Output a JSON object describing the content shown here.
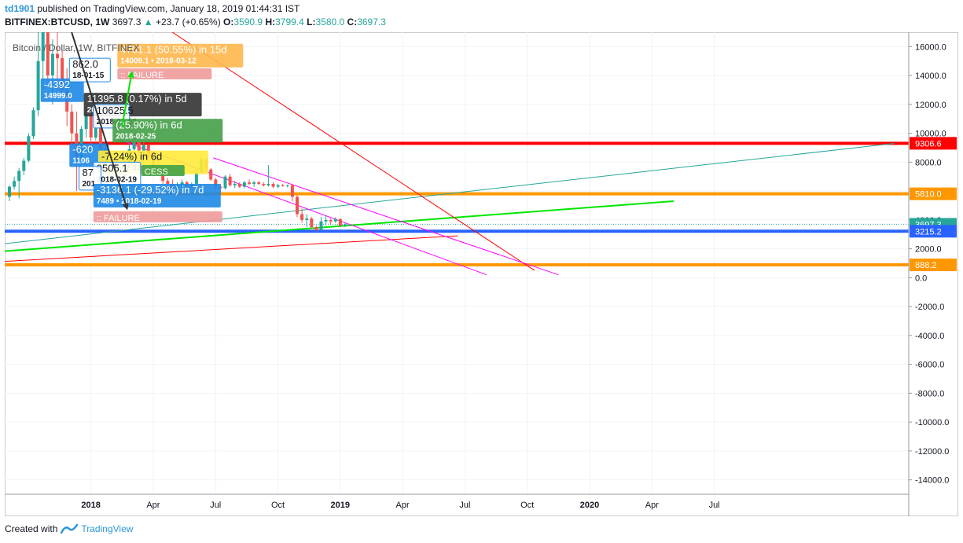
{
  "header": {
    "user": "td1901",
    "published": "published on TradingView.com, January 18, 2019 01:44:31 IST",
    "symbol": "BITFINEX:BTCUSD, 1W",
    "last": "3697.3",
    "change": "+23.7 (+0.65%)",
    "o_label": "O:",
    "o_value": "3590.9",
    "h_label": "H:",
    "h_value": "3799.4",
    "l_label": "L:",
    "l_value": "3580.0",
    "c_label": "C:",
    "c_value": "3697.3"
  },
  "chart_legend": "Bitcoin / Dollar, 1W, BITFINEX",
  "footer": {
    "created_with": "Created with",
    "brand": "TradingView"
  },
  "colors": {
    "up": "#26a69a",
    "down": "#ef5350",
    "red_line": "#ff0000",
    "orange_line": "#ff9800",
    "blue_line": "#2962ff",
    "green_line": "#00e600",
    "magenta_line": "#ff00ff",
    "teal_line": "#26a69a"
  },
  "chart_data": {
    "type": "candlestick",
    "x_axis_labels": [
      "2018",
      "Apr",
      "Jul",
      "Oct",
      "2019",
      "Apr",
      "Jul",
      "Oct",
      "2020",
      "Apr",
      "Jul"
    ],
    "y_ticks": [
      16000,
      14000,
      12000,
      10000,
      8000,
      6000,
      4000,
      2000,
      0,
      -2000,
      -4000,
      -6000,
      -8000,
      -10000,
      -12000,
      -14000
    ],
    "y_tick_labels": [
      "16000.0",
      "14000.0",
      "12000.0",
      "10000.0",
      "8000.0",
      "6000.0",
      "4000.0",
      "2000.0",
      "0.0",
      "-2000.0",
      "-4000.0",
      "-6000.0",
      "-8000.0",
      "-10000.0",
      "-12000.0",
      "-14000.0"
    ],
    "ylim": [
      -15000,
      17000
    ],
    "price_labels": [
      {
        "value": 9306.6,
        "text": "9306.6",
        "color": "#ff0000"
      },
      {
        "value": 5810.0,
        "text": "5810.0",
        "color": "#ff9800"
      },
      {
        "value": 3697.3,
        "text": "3697.3",
        "color": "#26a69a"
      },
      {
        "value": 3215.2,
        "text": "3215.2",
        "color": "#2962ff"
      },
      {
        "value": 888.2,
        "text": "888.2",
        "color": "#ff9800"
      }
    ],
    "horizontal_levels": [
      {
        "value": 9306.6,
        "color": "#ff0000"
      },
      {
        "value": 5810.0,
        "color": "#ff9800"
      },
      {
        "value": 3215.2,
        "color": "#2962ff"
      },
      {
        "value": 888.2,
        "color": "#ff9800"
      }
    ],
    "last_price": 3697.3,
    "candles": [
      {
        "o": 5600,
        "h": 6400,
        "l": 5300,
        "c": 6300
      },
      {
        "o": 6300,
        "h": 7000,
        "l": 6100,
        "c": 6700
      },
      {
        "o": 6700,
        "h": 7600,
        "l": 5500,
        "c": 7400
      },
      {
        "o": 7400,
        "h": 8300,
        "l": 7100,
        "c": 8100
      },
      {
        "o": 8100,
        "h": 10000,
        "l": 8000,
        "c": 9800
      },
      {
        "o": 9800,
        "h": 11800,
        "l": 9600,
        "c": 11600
      },
      {
        "o": 11600,
        "h": 17500,
        "l": 11200,
        "c": 15000
      },
      {
        "o": 15000,
        "h": 19800,
        "l": 13000,
        "c": 18000
      },
      {
        "o": 18000,
        "h": 19000,
        "l": 13500,
        "c": 14000
      },
      {
        "o": 14000,
        "h": 16500,
        "l": 12000,
        "c": 15500
      },
      {
        "o": 15500,
        "h": 17100,
        "l": 13000,
        "c": 15200
      },
      {
        "o": 15200,
        "h": 15800,
        "l": 12500,
        "c": 13000
      },
      {
        "o": 13000,
        "h": 14500,
        "l": 10500,
        "c": 11500
      },
      {
        "o": 11500,
        "h": 12000,
        "l": 9000,
        "c": 10000
      },
      {
        "o": 10000,
        "h": 11500,
        "l": 6000,
        "c": 8300
      },
      {
        "o": 8300,
        "h": 10500,
        "l": 8000,
        "c": 10300
      },
      {
        "o": 10300,
        "h": 11600,
        "l": 9700,
        "c": 11300
      },
      {
        "o": 11300,
        "h": 11800,
        "l": 9200,
        "c": 9700
      },
      {
        "o": 9700,
        "h": 11200,
        "l": 9500,
        "c": 10800
      },
      {
        "o": 10800,
        "h": 11000,
        "l": 8500,
        "c": 8900
      },
      {
        "o": 8900,
        "h": 9300,
        "l": 7800,
        "c": 8200
      },
      {
        "o": 8200,
        "h": 8500,
        "l": 6800,
        "c": 7000
      },
      {
        "o": 7000,
        "h": 8100,
        "l": 6500,
        "c": 6900
      },
      {
        "o": 6900,
        "h": 7500,
        "l": 6600,
        "c": 7000
      },
      {
        "o": 7000,
        "h": 8300,
        "l": 6800,
        "c": 8000
      },
      {
        "o": 8000,
        "h": 9300,
        "l": 7900,
        "c": 8900
      },
      {
        "o": 8900,
        "h": 9700,
        "l": 8800,
        "c": 9400
      },
      {
        "o": 9400,
        "h": 9800,
        "l": 8500,
        "c": 8800
      },
      {
        "o": 8800,
        "h": 9400,
        "l": 8300,
        "c": 9200
      },
      {
        "o": 9200,
        "h": 9300,
        "l": 8100,
        "c": 8400
      },
      {
        "o": 8400,
        "h": 8600,
        "l": 7600,
        "c": 7700
      },
      {
        "o": 7700,
        "h": 8200,
        "l": 7200,
        "c": 7500
      },
      {
        "o": 7500,
        "h": 7800,
        "l": 6500,
        "c": 6700
      },
      {
        "o": 6700,
        "h": 6900,
        "l": 6300,
        "c": 6500
      },
      {
        "o": 6500,
        "h": 6800,
        "l": 5800,
        "c": 6100
      },
      {
        "o": 6100,
        "h": 6600,
        "l": 5900,
        "c": 6400
      },
      {
        "o": 6400,
        "h": 6800,
        "l": 6200,
        "c": 6600
      },
      {
        "o": 6600,
        "h": 6700,
        "l": 6100,
        "c": 6300
      },
      {
        "o": 6300,
        "h": 6600,
        "l": 6200,
        "c": 6500
      },
      {
        "o": 6500,
        "h": 7500,
        "l": 6400,
        "c": 7300
      },
      {
        "o": 7300,
        "h": 8500,
        "l": 7200,
        "c": 8200
      },
      {
        "o": 8200,
        "h": 8300,
        "l": 7400,
        "c": 7500
      },
      {
        "o": 7500,
        "h": 7600,
        "l": 6700,
        "c": 6800
      },
      {
        "o": 6800,
        "h": 6900,
        "l": 6100,
        "c": 6300
      },
      {
        "o": 6300,
        "h": 6500,
        "l": 5900,
        "c": 6200
      },
      {
        "o": 6200,
        "h": 7100,
        "l": 6100,
        "c": 7000
      },
      {
        "o": 7000,
        "h": 7200,
        "l": 6300,
        "c": 6400
      },
      {
        "o": 6400,
        "h": 6700,
        "l": 6200,
        "c": 6500
      },
      {
        "o": 6500,
        "h": 6600,
        "l": 6200,
        "c": 6300
      },
      {
        "o": 6300,
        "h": 6700,
        "l": 6200,
        "c": 6600
      },
      {
        "o": 6600,
        "h": 6800,
        "l": 6400,
        "c": 6500
      },
      {
        "o": 6500,
        "h": 6700,
        "l": 6300,
        "c": 6600
      },
      {
        "o": 6600,
        "h": 6700,
        "l": 6400,
        "c": 6500
      },
      {
        "o": 6500,
        "h": 6600,
        "l": 6300,
        "c": 6400
      },
      {
        "o": 6400,
        "h": 7800,
        "l": 6300,
        "c": 6500
      },
      {
        "o": 6500,
        "h": 6600,
        "l": 6200,
        "c": 6300
      },
      {
        "o": 6300,
        "h": 6500,
        "l": 6200,
        "c": 6400
      },
      {
        "o": 6400,
        "h": 6500,
        "l": 6300,
        "c": 6350
      },
      {
        "o": 6350,
        "h": 6450,
        "l": 6250,
        "c": 6400
      },
      {
        "o": 6400,
        "h": 6500,
        "l": 5300,
        "c": 5600
      },
      {
        "o": 5600,
        "h": 5700,
        "l": 4200,
        "c": 4400
      },
      {
        "o": 4400,
        "h": 4800,
        "l": 3800,
        "c": 4000
      },
      {
        "o": 4000,
        "h": 4400,
        "l": 3500,
        "c": 4100
      },
      {
        "o": 4100,
        "h": 4200,
        "l": 3400,
        "c": 3500
      },
      {
        "o": 3500,
        "h": 3600,
        "l": 3200,
        "c": 3300
      },
      {
        "o": 3300,
        "h": 4200,
        "l": 3250,
        "c": 3900
      },
      {
        "o": 3900,
        "h": 4300,
        "l": 3600,
        "c": 4000
      },
      {
        "o": 4000,
        "h": 4100,
        "l": 3700,
        "c": 3900
      },
      {
        "o": 3900,
        "h": 4200,
        "l": 3800,
        "c": 4050
      },
      {
        "o": 4050,
        "h": 4150,
        "l": 3500,
        "c": 3600
      },
      {
        "o": 3600,
        "h": 3800,
        "l": 3500,
        "c": 3697
      }
    ],
    "annotations": [
      {
        "text": "4701.1 (50.55%) in 15d",
        "sub": "14009.1 • 2018-03-12",
        "color": "#ffb74d",
        "text_color": "#ffffff"
      },
      {
        "text": ":: FAILURE",
        "color": "#ef9a9a",
        "text_color": "#ffffff"
      },
      {
        "text": "-4392",
        "sub": "14999.0",
        "color": "#1e88e5",
        "text_color": "#ffffff"
      },
      {
        "text": "862.0",
        "sub": "18-01-15",
        "color": "#ffffff",
        "text_color": "#131722"
      },
      {
        "text": "11395.8 (0.17%) in 5d",
        "sub": "2018-02-06",
        "color": "#333333",
        "text_color": "#ffffff"
      },
      {
        "text": "10625.5",
        "sub": "2018-02-02",
        "color": "#ffffff",
        "text_color": "#131722"
      },
      {
        "text": "(25.90%) in 6d",
        "sub": "2018-02-25",
        "color": "#43a047",
        "text_color": "#ffffff"
      },
      {
        "text": "-620",
        "sub": "1106",
        "color": "#1e88e5",
        "text_color": "#ffffff"
      },
      {
        "text": "-7.24%) in 6d",
        "sub": "2018-02-12",
        "color": "#ffeb3b",
        "text_color": "#131722"
      },
      {
        "text": "9505.1",
        "sub": "2018-02-19",
        "color": "#ffffff",
        "text_color": "#131722"
      },
      {
        "text": "87",
        "sub": "201",
        "color": "#ffffff",
        "text_color": "#131722"
      },
      {
        "text": "CESS",
        "color": "#43a047",
        "text_color": "#ffffff"
      },
      {
        "text": "-3136.1 (-29.52%) in 7d",
        "sub": "7489 • 2018-02-19",
        "color": "#1e88e5",
        "text_color": "#ffffff"
      },
      {
        "text": ":: FAILURE",
        "color": "#ef9a9a",
        "text_color": "#ffffff"
      }
    ]
  }
}
